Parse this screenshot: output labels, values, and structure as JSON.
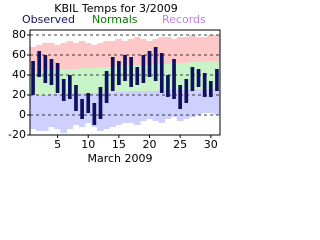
{
  "chart_data": {
    "type": "range-bar",
    "title": "KBIL Temps for 3/2009",
    "xlabel": "March 2009",
    "x": [
      1,
      2,
      3,
      4,
      5,
      6,
      7,
      8,
      9,
      10,
      11,
      12,
      13,
      14,
      15,
      16,
      17,
      18,
      19,
      20,
      21,
      22,
      23,
      24,
      25,
      26,
      27,
      28,
      29,
      30,
      31
    ],
    "xlim": [
      0.5,
      31.5
    ],
    "xticks": [
      5,
      10,
      15,
      20,
      25,
      30
    ],
    "ylim": [
      -20,
      85
    ],
    "yticks": [
      -20,
      0,
      20,
      40,
      60,
      80
    ],
    "grid": true,
    "series": [
      {
        "name": "Observed",
        "color": "#101060",
        "high": [
          54,
          64,
          60,
          56,
          52,
          36,
          40,
          30,
          16,
          22,
          12,
          28,
          44,
          58,
          54,
          60,
          58,
          48,
          60,
          64,
          68,
          62,
          40,
          56,
          30,
          36,
          48,
          46,
          42,
          34,
          46
        ],
        "low": [
          20,
          38,
          32,
          30,
          22,
          14,
          16,
          4,
          -4,
          2,
          -10,
          -4,
          12,
          24,
          30,
          34,
          28,
          30,
          32,
          38,
          34,
          22,
          18,
          16,
          6,
          12,
          24,
          28,
          18,
          18,
          24
        ]
      },
      {
        "name": "Normals",
        "color": "#008000",
        "fill": "#c8f4c8",
        "high": [
          44,
          44,
          45,
          45,
          45,
          46,
          46,
          46,
          47,
          47,
          47,
          48,
          48,
          48,
          49,
          49,
          49,
          50,
          50,
          50,
          51,
          51,
          51,
          52,
          52,
          52,
          53,
          53,
          53,
          54,
          54
        ],
        "low": [
          20,
          20,
          20,
          21,
          21,
          21,
          21,
          22,
          22,
          22,
          22,
          22,
          23,
          23,
          23,
          23,
          24,
          24,
          24,
          24,
          24,
          25,
          25,
          25,
          25,
          25,
          26,
          26,
          26,
          26,
          26
        ]
      },
      {
        "name": "Records",
        "color": "#c080e0",
        "fill_high": "#ffc8c8",
        "fill_low": "#d0d0ff",
        "high": [
          68,
          70,
          72,
          72,
          70,
          72,
          74,
          72,
          74,
          72,
          70,
          72,
          74,
          74,
          76,
          74,
          76,
          78,
          76,
          74,
          76,
          78,
          78,
          76,
          78,
          78,
          80,
          78,
          78,
          80,
          80
        ],
        "low": [
          -14,
          -16,
          -16,
          -12,
          -14,
          -18,
          -14,
          -10,
          -12,
          -8,
          -12,
          -16,
          -14,
          -12,
          -10,
          -8,
          -8,
          -10,
          -6,
          -4,
          -6,
          -8,
          -4,
          -2,
          -6,
          -4,
          -2,
          0,
          2,
          2,
          0
        ]
      }
    ]
  }
}
